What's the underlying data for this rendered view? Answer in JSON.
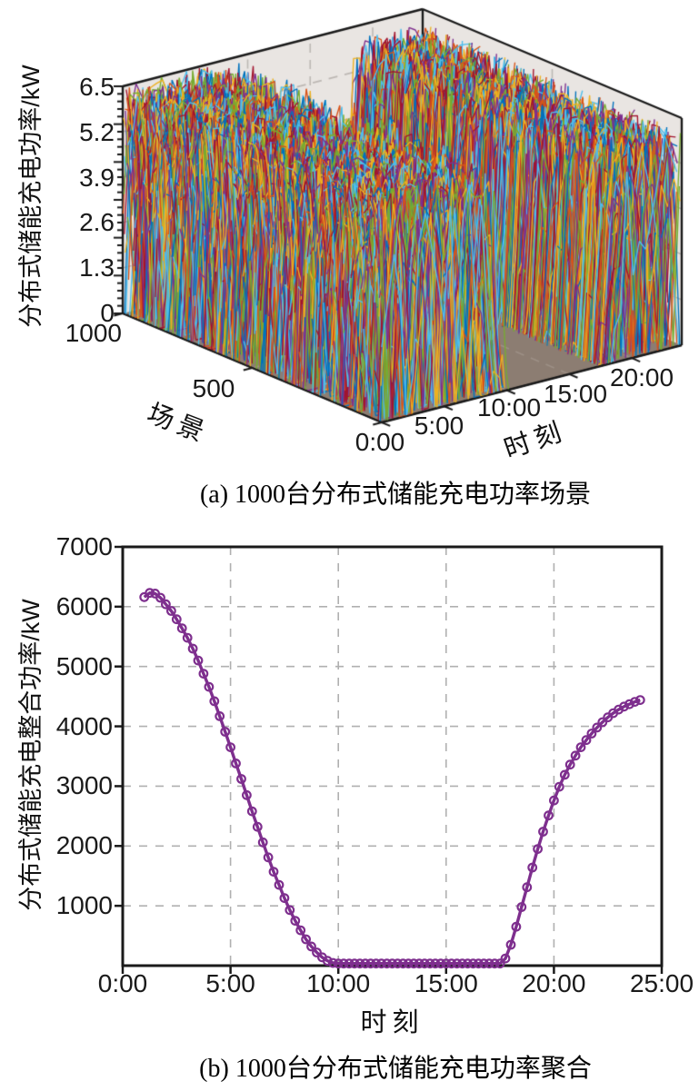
{
  "figure": {
    "panel_a": {
      "caption": "(a) 1000台分布式储能充电功率场景",
      "zlabel": "分布式储能充电功率/kW",
      "scenario_label": "场景",
      "time_label": "时刻",
      "z_ticks": [
        "6.5",
        "5.2",
        "3.9",
        "2.6",
        "1.3",
        "0"
      ],
      "scenario_ticks": [
        "1000",
        "500"
      ],
      "time_ticks": [
        "0:00",
        "5:00",
        "10:00",
        "15:00",
        "20:00"
      ]
    },
    "panel_b": {
      "caption": "(b) 1000台分布式储能充电功率聚合",
      "ylabel": "分布式储能充电整合功率/kW",
      "xlabel": "时刻",
      "y_ticks": [
        "7000",
        "6000",
        "5000",
        "4000",
        "3000",
        "2000",
        "1000"
      ],
      "x_ticks": [
        "0:00",
        "5:00",
        "10:00",
        "15:00",
        "20:00",
        "25:00"
      ]
    }
  },
  "chart_data": [
    {
      "type": "line3d",
      "title": "1000 distributed storage charging power scenarios",
      "series_count": 1000,
      "xlabel": "时刻",
      "x_ticks": [
        "0:00",
        "5:00",
        "10:00",
        "15:00",
        "20:00"
      ],
      "x_range_hours": [
        0,
        24
      ],
      "ylabel": "场景",
      "y_ticks": [
        1000,
        500,
        0
      ],
      "y_range": [
        0,
        1000
      ],
      "zlabel": "分布式储能充电功率/kW",
      "z_ticks": [
        6.5,
        5.2,
        3.9,
        2.6,
        1.3,
        0
      ],
      "z_range": [
        0,
        6.5
      ],
      "pattern": {
        "description": "1000 stochastic charging-power time series: random spikes between 0 and 6.5 kW from 0:00 until a per-scenario morning cutoff (~8:00–10:30), zero during midday (bare floor visible ~10:30–17:30), active again from ~17:20 until 24:00 with slightly lower peaks",
        "morning_cutoff_hours": [
          7.9,
          10.6
        ],
        "evening_start_hours": [
          17.25,
          18.8
        ]
      },
      "palette": [
        "#0072BD",
        "#D95319",
        "#EDB120",
        "#7E2F8E",
        "#77AC30",
        "#4DBEEE",
        "#A2142F"
      ],
      "wall_color": "#E9E5E2",
      "floor_color": "#8C7D72",
      "grid": "dashed"
    },
    {
      "type": "line",
      "title": "Aggregated charging power of 1000 distributed storage units",
      "xlabel": "时刻",
      "ylabel": "分布式储能充电整合功率/kW",
      "xlim": [
        0,
        25
      ],
      "ylim": [
        0,
        7000
      ],
      "x_tick_hours": [
        0,
        5,
        10,
        15,
        20,
        25
      ],
      "y_tick_values": [
        7000,
        6000,
        5000,
        4000,
        3000,
        2000,
        1000
      ],
      "grid": "dashed",
      "line_color": "#7E2F8E",
      "marker": "o",
      "x": [
        1.0,
        1.25,
        1.5,
        1.75,
        2.0,
        2.25,
        2.5,
        2.75,
        3.0,
        3.25,
        3.5,
        3.75,
        4.0,
        4.25,
        4.5,
        4.75,
        5.0,
        5.25,
        5.5,
        5.75,
        6.0,
        6.25,
        6.5,
        6.75,
        7.0,
        7.25,
        7.5,
        7.75,
        8.0,
        8.25,
        8.5,
        8.75,
        9.0,
        9.25,
        9.5,
        9.75,
        10.0,
        10.25,
        10.5,
        10.75,
        11.0,
        11.25,
        11.5,
        11.75,
        12.0,
        12.25,
        12.5,
        12.75,
        13.0,
        13.25,
        13.5,
        13.75,
        14.0,
        14.25,
        14.5,
        14.75,
        15.0,
        15.25,
        15.5,
        15.75,
        16.0,
        16.25,
        16.5,
        16.75,
        17.0,
        17.25,
        17.5,
        17.75,
        18.0,
        18.25,
        18.5,
        18.75,
        19.0,
        19.25,
        19.5,
        19.75,
        20.0,
        20.25,
        20.5,
        20.75,
        21.0,
        21.25,
        21.5,
        21.75,
        22.0,
        22.25,
        22.5,
        22.75,
        23.0,
        23.25,
        23.5,
        23.75,
        24.0
      ],
      "y": [
        6160,
        6230,
        6220,
        6150,
        6040,
        5930,
        5790,
        5640,
        5480,
        5300,
        5100,
        4880,
        4660,
        4420,
        4170,
        3910,
        3650,
        3380,
        3120,
        2850,
        2580,
        2320,
        2060,
        1810,
        1570,
        1350,
        1130,
        930,
        750,
        590,
        440,
        320,
        220,
        140,
        80,
        45,
        35,
        35,
        35,
        35,
        35,
        35,
        35,
        35,
        35,
        35,
        35,
        35,
        35,
        35,
        35,
        35,
        35,
        35,
        35,
        35,
        35,
        35,
        35,
        35,
        35,
        35,
        35,
        35,
        35,
        35,
        35,
        120,
        350,
        650,
        980,
        1310,
        1640,
        1950,
        2240,
        2510,
        2760,
        2990,
        3190,
        3360,
        3510,
        3650,
        3770,
        3880,
        3980,
        4070,
        4150,
        4220,
        4280,
        4330,
        4370,
        4410,
        4440
      ]
    }
  ]
}
